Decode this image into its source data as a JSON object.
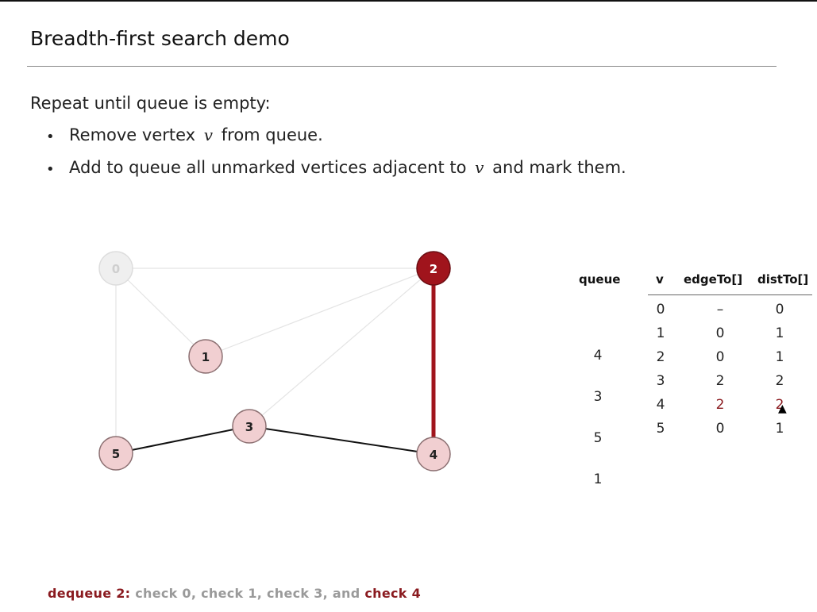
{
  "slide": {
    "title": "Breadth-first search demo",
    "intro": "Repeat until queue is empty:",
    "bullets": [
      {
        "before": "Remove vertex ",
        "var": "v",
        "after": " from queue."
      },
      {
        "before": "Add to queue all unmarked vertices adjacent to ",
        "var": "v",
        "after": " and mark them."
      }
    ]
  },
  "graph": {
    "vertices": [
      {
        "id": "0",
        "state": "faded"
      },
      {
        "id": "1",
        "state": "marked"
      },
      {
        "id": "2",
        "state": "current"
      },
      {
        "id": "3",
        "state": "marked"
      },
      {
        "id": "4",
        "state": "marked"
      },
      {
        "id": "5",
        "state": "marked"
      }
    ],
    "edges": [
      {
        "from": "0",
        "to": "2",
        "state": "faded"
      },
      {
        "from": "0",
        "to": "1",
        "state": "faded"
      },
      {
        "from": "0",
        "to": "5",
        "state": "faded"
      },
      {
        "from": "1",
        "to": "2",
        "state": "faded"
      },
      {
        "from": "2",
        "to": "3",
        "state": "faded"
      },
      {
        "from": "2",
        "to": "4",
        "state": "highlighted"
      },
      {
        "from": "3",
        "to": "5",
        "state": "tree"
      },
      {
        "from": "3",
        "to": "4",
        "state": "tree"
      }
    ]
  },
  "table": {
    "headers": {
      "queue": "queue",
      "v": "v",
      "edgeTo": "edgeTo[]",
      "distTo": "distTo[]"
    },
    "rows": [
      {
        "v": "0",
        "edgeTo": "–",
        "distTo": "0"
      },
      {
        "v": "1",
        "edgeTo": "0",
        "distTo": "1"
      },
      {
        "v": "2",
        "edgeTo": "0",
        "distTo": "1"
      },
      {
        "v": "3",
        "edgeTo": "2",
        "distTo": "2"
      },
      {
        "v": "4",
        "edgeTo": "2",
        "distTo": "2",
        "highlight": true
      },
      {
        "v": "5",
        "edgeTo": "0",
        "distTo": "1"
      }
    ],
    "queue": [
      "4",
      "3",
      "5",
      "1"
    ]
  },
  "caption": {
    "action": "dequeue 2:",
    "checks_gray": " check 0, check 1, check 3, and ",
    "check_red": "check 4"
  },
  "colors": {
    "current": "#a0141c",
    "marked_fill": "#f1cfd1",
    "faded": "#dddddd",
    "accent": "#8a1a1f"
  }
}
